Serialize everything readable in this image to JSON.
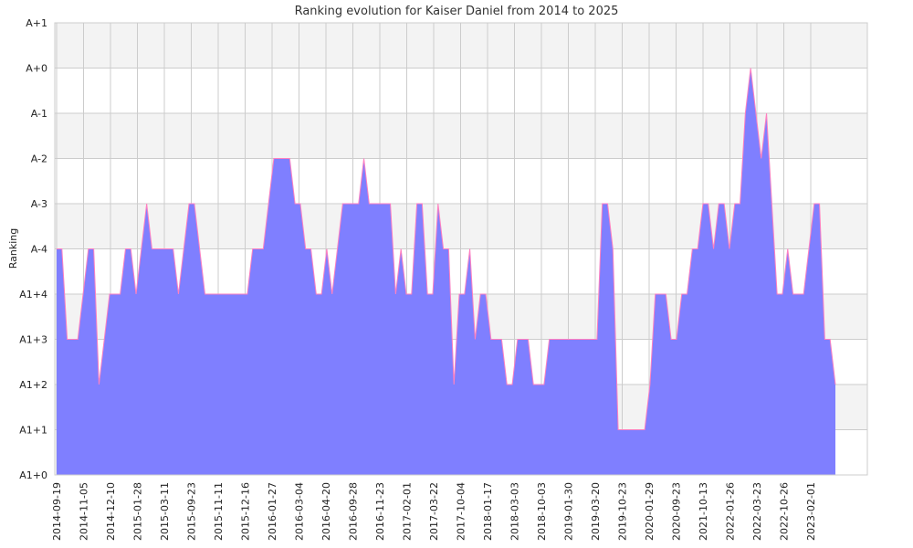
{
  "chart_data": {
    "type": "area",
    "title": "Ranking evolution for Kaiser Daniel from 2014 to 2025",
    "xlabel": "",
    "ylabel": "Ranking",
    "y_ticks": [
      "A1+0",
      "A1+1",
      "A1+2",
      "A1+3",
      "A1+4",
      "A-4",
      "A-3",
      "A-2",
      "A-1",
      "A+0",
      "A+1"
    ],
    "ylim": [
      0,
      10
    ],
    "x_ticks": [
      "2014-09-19",
      "2014-11-05",
      "2014-12-10",
      "2015-01-28",
      "2015-03-11",
      "2015-09-23",
      "2015-11-11",
      "2015-12-16",
      "2016-01-27",
      "2016-03-04",
      "2016-04-20",
      "2016-09-28",
      "2016-11-23",
      "2017-02-01",
      "2017-03-22",
      "2017-10-04",
      "2018-01-17",
      "2018-03-03",
      "2018-10-03",
      "2019-01-30",
      "2019-03-20",
      "2019-10-23",
      "2020-01-29",
      "2020-09-23",
      "2021-10-13",
      "2022-01-26",
      "2022-03-23",
      "2022-10-26",
      "2023-02-01"
    ],
    "grid": true,
    "legend": "none",
    "series": [
      {
        "values": [
          5,
          5,
          3,
          3,
          3,
          4,
          5,
          5,
          2,
          3,
          4,
          4,
          4,
          5,
          5,
          4,
          5,
          6,
          5,
          5,
          5,
          5,
          5,
          4,
          5,
          6,
          6,
          5,
          4,
          4,
          4,
          4,
          4,
          4,
          4,
          4,
          4,
          5,
          5,
          5,
          6,
          7,
          7,
          7,
          7,
          6,
          6,
          5,
          5,
          4,
          4,
          5,
          4,
          5,
          6,
          6,
          6,
          6,
          7,
          6,
          6,
          6,
          6,
          6,
          4,
          5,
          4,
          4,
          6,
          6,
          4,
          4,
          6,
          5,
          5,
          2,
          4,
          4,
          5,
          3,
          4,
          4,
          3,
          3,
          3,
          2,
          2,
          3,
          3,
          3,
          2,
          2,
          2,
          3,
          3,
          3,
          3,
          3,
          3,
          3,
          3,
          3,
          3,
          6,
          6,
          5,
          1,
          1,
          1,
          1,
          1,
          1,
          2,
          4,
          4,
          4,
          3,
          3,
          4,
          4,
          5,
          5,
          6,
          6,
          5,
          6,
          6,
          5,
          6,
          6,
          8,
          9,
          8,
          7,
          8,
          6,
          4,
          4,
          5,
          4,
          4,
          4,
          5,
          6,
          6,
          3,
          3,
          2
        ]
      }
    ],
    "colors": {
      "fill": "#7f7fff",
      "line": "#ff80c0",
      "band": "#f3f3f3",
      "grid": "#cccccc"
    }
  }
}
